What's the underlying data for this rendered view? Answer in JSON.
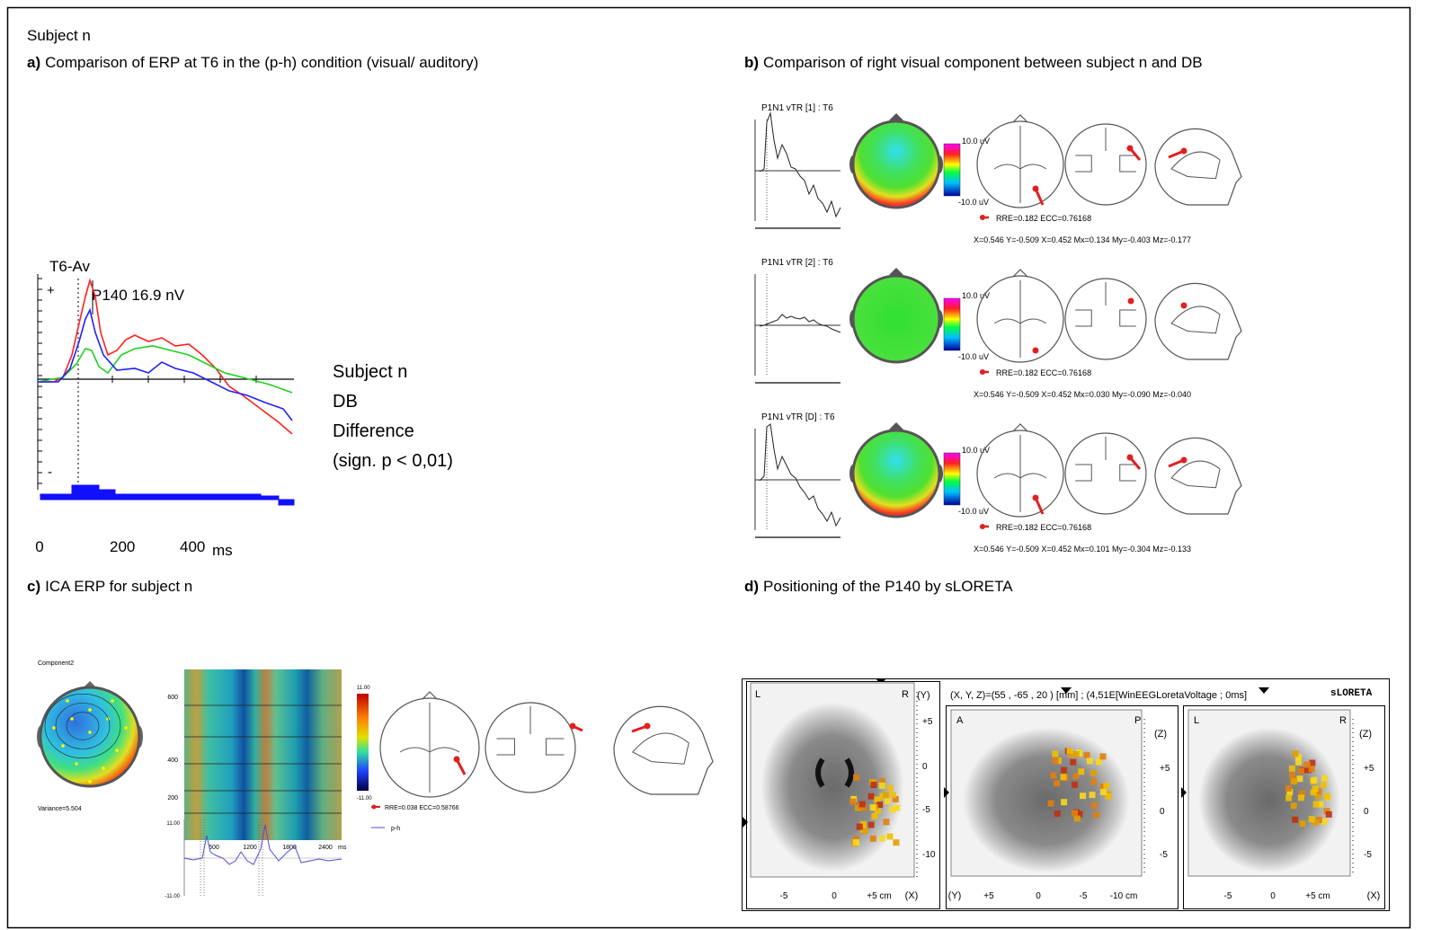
{
  "header": {
    "subject": "Subject n"
  },
  "panels": [
    {
      "label": "a)",
      "title": "Comparison of ERP at T6 in the (p-h) condition (visual/ auditory)"
    },
    {
      "label": "b)",
      "title": "Comparison of right visual component between subject n and DB"
    },
    {
      "label": "c)",
      "title": "ICA ERP for subject n"
    },
    {
      "label": "d)",
      "title": "Positioning of the P140 by sLORETA"
    }
  ],
  "erp": {
    "channel": "T6-Av",
    "plus": "+",
    "minus": "-",
    "peak": "P140  16.9 nV",
    "legend": [
      "Subject n",
      "DB",
      "Difference",
      "(sign. p < 0,01)"
    ],
    "x_ticks": [
      "0",
      "200",
      "400"
    ],
    "x_unit": "ms"
  },
  "components": {
    "scale_max": "10.0 uV",
    "scale_min": "-10.0 uV",
    "rows": [
      {
        "title": "P1N1 vTR [1] : T6",
        "fit": "RRE=0.182 ECC=0.76168",
        "dipole": "X=0.546 Y=-0.509 X=0.452 Mx=0.134 My=-0.403 Mz=-0.177"
      },
      {
        "title": "P1N1 vTR [2] : T6",
        "fit": "RRE=0.182 ECC=0.76168",
        "dipole": "X=0.546 Y=-0.509 X=0.452 Mx=0.030 My=-0.090 Mz=-0.040"
      },
      {
        "title": "P1N1 vTR [D] : T6",
        "fit": "RRE=0.182 ECC=0.76168",
        "dipole": "X=0.546 Y=-0.509 X=0.452 Mx=0.101 My=-0.304 Mz=-0.133"
      }
    ]
  },
  "ica": {
    "component": "Component2",
    "variance": "Variance=5.504",
    "y_ticks": [
      "600",
      "400",
      "200"
    ],
    "x_ticks": [
      "600",
      "1200",
      "1800",
      "2400"
    ],
    "x_unit": "ms",
    "scale_max": "11.00",
    "scale_min": "-11.00",
    "trace_max": "11.00",
    "trace_min": "-11.00",
    "fit": "RRE=0.038 ECC=0.58766",
    "trace_name": "p-h"
  },
  "sloreta": {
    "readout": "(X, Y, Z)=(55 , -65 , 20 ) [mm] ; (4,51E[WinEEGLoretaVoltage ; 0ms]",
    "brand": "sLORETA",
    "views": [
      {
        "left": "L",
        "right": "R",
        "axis": "(Y)",
        "y_ticks": [
          "+5",
          "0",
          "-5",
          "-10"
        ],
        "x_ticks": [
          "-5",
          "0",
          "+5 cm"
        ],
        "x_axis": "(X)"
      },
      {
        "left": "A",
        "right": "P",
        "axis": "(Z)",
        "y_ticks": [
          "+5",
          "0",
          "-5"
        ],
        "x_ticks": [
          "+5",
          "0",
          "-5",
          "-10 cm"
        ],
        "x_axis": "(Y)"
      },
      {
        "left": "L",
        "right": "R",
        "axis": "(Z)",
        "y_ticks": [
          "+5",
          "0",
          "-5"
        ],
        "x_ticks": [
          "-5",
          "0",
          "+5 cm"
        ],
        "x_axis": "(X)"
      }
    ]
  }
}
